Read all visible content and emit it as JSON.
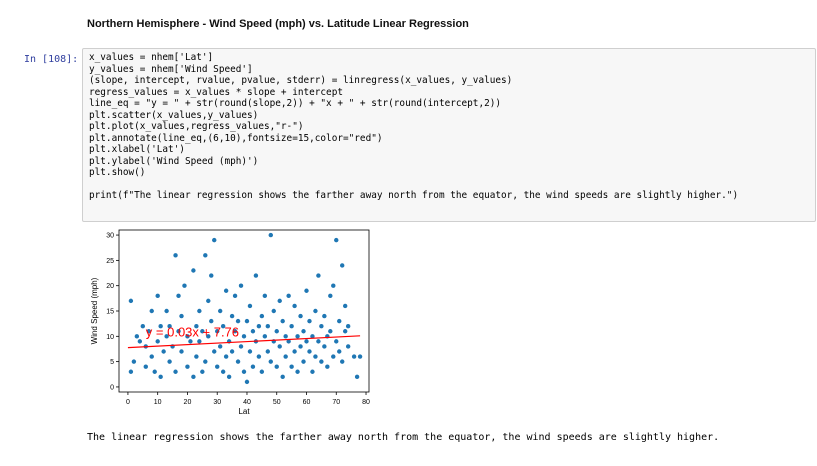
{
  "heading": "Northern Hemisphere - Wind Speed (mph) vs. Latitude Linear Regression",
  "cell": {
    "prompt": "In [108]:",
    "code_lines": [
      "x_values = nhem['Lat']",
      "y_values = nhem['Wind Speed']",
      "(slope, intercept, rvalue, pvalue, stderr) = linregress(x_values, y_values)",
      "regress_values = x_values * slope + intercept",
      "line_eq = \"y = \" + str(round(slope,2)) + \"x + \" + str(round(intercept,2))",
      "plt.scatter(x_values,y_values)",
      "plt.plot(x_values,regress_values,\"r-\")",
      "plt.annotate(line_eq,(6,10),fontsize=15,color=\"red\")",
      "plt.xlabel('Lat')",
      "plt.ylabel('Wind Speed (mph)')",
      "plt.show()",
      "",
      "print(f\"The linear regression shows the farther away north from the equator, the wind speeds are slightly higher.\")"
    ]
  },
  "output_text": "The linear regression shows the farther away north from the equator, the wind speeds are slightly higher.",
  "colors": {
    "points": "#1f77b4",
    "line": "#ff0000",
    "annotation": "#ff0000"
  },
  "chart_data": {
    "type": "scatter",
    "xlabel": "Lat",
    "ylabel": "Wind Speed (mph)",
    "xlim": [
      -3,
      81
    ],
    "ylim": [
      -1,
      31
    ],
    "xticks": [
      0,
      10,
      20,
      30,
      40,
      50,
      60,
      70,
      80
    ],
    "yticks": [
      0,
      5,
      10,
      15,
      20,
      25,
      30
    ],
    "annotation": {
      "text": "y = 0.03x + 7.76",
      "x": 6,
      "y": 10
    },
    "regression": {
      "slope": 0.03,
      "intercept": 7.76,
      "x_range": [
        0,
        78
      ]
    },
    "points": [
      [
        1,
        17
      ],
      [
        2,
        5
      ],
      [
        1,
        3
      ],
      [
        3,
        10
      ],
      [
        4,
        9
      ],
      [
        5,
        12
      ],
      [
        6,
        8
      ],
      [
        6,
        4
      ],
      [
        7,
        11
      ],
      [
        8,
        15
      ],
      [
        8,
        6
      ],
      [
        9,
        3
      ],
      [
        10,
        9
      ],
      [
        10,
        18
      ],
      [
        11,
        12
      ],
      [
        11,
        2
      ],
      [
        12,
        7
      ],
      [
        13,
        15
      ],
      [
        13,
        10
      ],
      [
        14,
        5
      ],
      [
        14,
        12
      ],
      [
        15,
        8
      ],
      [
        16,
        26
      ],
      [
        16,
        3
      ],
      [
        17,
        18
      ],
      [
        17,
        11
      ],
      [
        18,
        7
      ],
      [
        18,
        14
      ],
      [
        19,
        20
      ],
      [
        20,
        4
      ],
      [
        20,
        10
      ],
      [
        21,
        9
      ],
      [
        22,
        23
      ],
      [
        22,
        2
      ],
      [
        23,
        12
      ],
      [
        23,
        6
      ],
      [
        24,
        15
      ],
      [
        24,
        9
      ],
      [
        25,
        3
      ],
      [
        25,
        11
      ],
      [
        26,
        26
      ],
      [
        26,
        5
      ],
      [
        27,
        17
      ],
      [
        27,
        10
      ],
      [
        28,
        22
      ],
      [
        28,
        13
      ],
      [
        29,
        7
      ],
      [
        29,
        29
      ],
      [
        30,
        4
      ],
      [
        30,
        11
      ],
      [
        31,
        8
      ],
      [
        31,
        15
      ],
      [
        32,
        3
      ],
      [
        32,
        12
      ],
      [
        33,
        6
      ],
      [
        33,
        19
      ],
      [
        34,
        9
      ],
      [
        34,
        2
      ],
      [
        35,
        14
      ],
      [
        35,
        7
      ],
      [
        36,
        18
      ],
      [
        36,
        11
      ],
      [
        37,
        5
      ],
      [
        37,
        13
      ],
      [
        38,
        8
      ],
      [
        38,
        20
      ],
      [
        39,
        10
      ],
      [
        39,
        3
      ],
      [
        40,
        13
      ],
      [
        40,
        1
      ],
      [
        41,
        16
      ],
      [
        41,
        7
      ],
      [
        42,
        11
      ],
      [
        42,
        4
      ],
      [
        43,
        9
      ],
      [
        43,
        22
      ],
      [
        44,
        12
      ],
      [
        44,
        6
      ],
      [
        45,
        14
      ],
      [
        45,
        3
      ],
      [
        46,
        10
      ],
      [
        46,
        18
      ],
      [
        47,
        7
      ],
      [
        47,
        12
      ],
      [
        48,
        30
      ],
      [
        48,
        5
      ],
      [
        49,
        9
      ],
      [
        49,
        15
      ],
      [
        50,
        4
      ],
      [
        50,
        11
      ],
      [
        51,
        8
      ],
      [
        51,
        17
      ],
      [
        52,
        13
      ],
      [
        52,
        2
      ],
      [
        53,
        10
      ],
      [
        53,
        6
      ],
      [
        54,
        18
      ],
      [
        54,
        9
      ],
      [
        55,
        4
      ],
      [
        55,
        12
      ],
      [
        56,
        16
      ],
      [
        56,
        7
      ],
      [
        57,
        10
      ],
      [
        57,
        3
      ],
      [
        58,
        14
      ],
      [
        58,
        8
      ],
      [
        59,
        11
      ],
      [
        59,
        5
      ],
      [
        60,
        19
      ],
      [
        60,
        9
      ],
      [
        61,
        7
      ],
      [
        61,
        13
      ],
      [
        62,
        3
      ],
      [
        62,
        10
      ],
      [
        63,
        15
      ],
      [
        63,
        6
      ],
      [
        64,
        9
      ],
      [
        64,
        22
      ],
      [
        65,
        5
      ],
      [
        65,
        12
      ],
      [
        66,
        8
      ],
      [
        66,
        14
      ],
      [
        67,
        10
      ],
      [
        67,
        4
      ],
      [
        68,
        18
      ],
      [
        68,
        11
      ],
      [
        69,
        6
      ],
      [
        69,
        20
      ],
      [
        70,
        9
      ],
      [
        70,
        29
      ],
      [
        71,
        7
      ],
      [
        71,
        13
      ],
      [
        72,
        24
      ],
      [
        72,
        5
      ],
      [
        73,
        11
      ],
      [
        73,
        16
      ],
      [
        74,
        8
      ],
      [
        74,
        12
      ],
      [
        76,
        6
      ],
      [
        77,
        2
      ],
      [
        78,
        6
      ]
    ]
  }
}
